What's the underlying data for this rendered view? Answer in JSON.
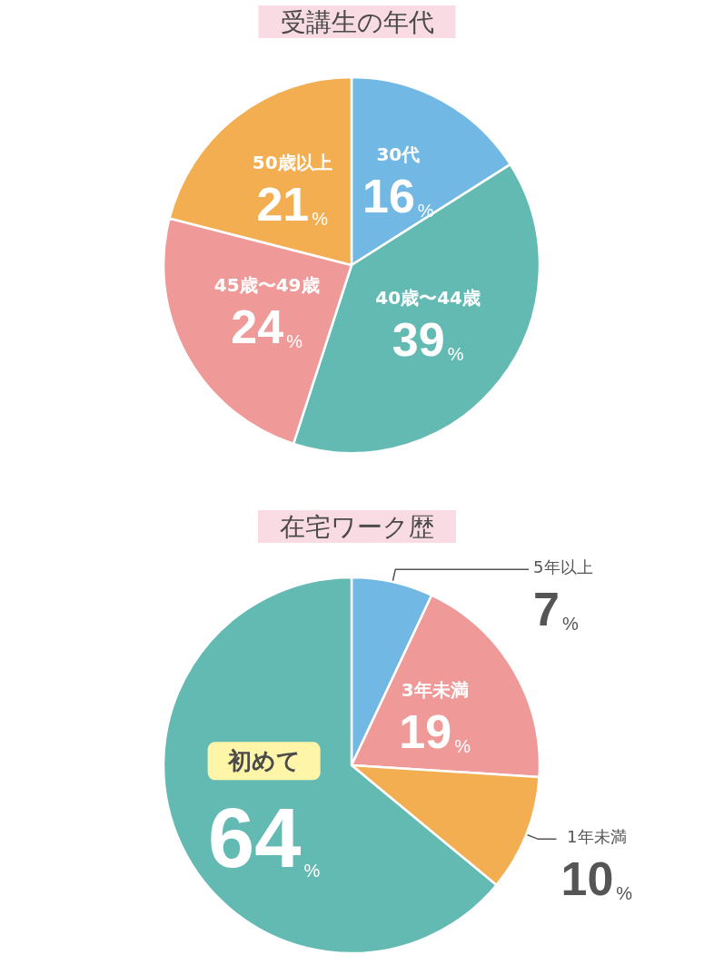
{
  "chart_data": [
    {
      "type": "pie",
      "title": "受講生の年代",
      "categories": [
        "30代",
        "40歳〜44歳",
        "45歳〜49歳",
        "50歳以上"
      ],
      "values": [
        16,
        39,
        24,
        21
      ],
      "colors": [
        "#72b8e4",
        "#62bab3",
        "#ef9a98",
        "#f4ae52"
      ],
      "value_labels": [
        "16%",
        "39%",
        "24%",
        "21%"
      ]
    },
    {
      "type": "pie",
      "title": "在宅ワーク歴",
      "categories": [
        "5年以上",
        "3年未満",
        "1年未満",
        "初めて"
      ],
      "values": [
        7,
        19,
        10,
        64
      ],
      "colors": [
        "#72b8e4",
        "#ef9a98",
        "#f4ae52",
        "#62bab3"
      ],
      "value_labels": [
        "7%",
        "19%",
        "10%",
        "64%"
      ]
    }
  ]
}
